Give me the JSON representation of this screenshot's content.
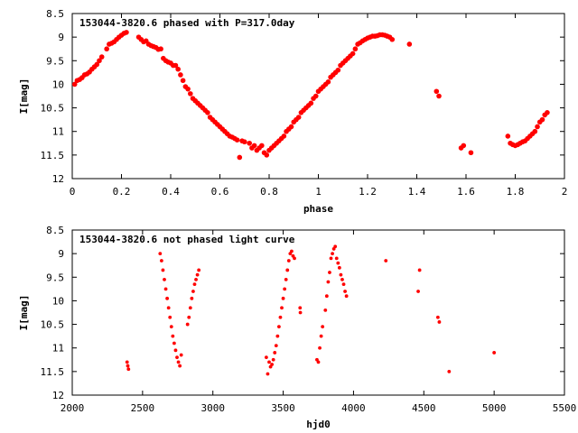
{
  "chart_data": [
    {
      "type": "scatter",
      "title": "153044-3820.6 phased with P=317.0day",
      "xlabel": "phase",
      "ylabel": "I[mag]",
      "xlim": [
        0,
        2
      ],
      "ylim": [
        12,
        8.5
      ],
      "y_inverted": true,
      "xticks": [
        0,
        0.2,
        0.4,
        0.6,
        0.8,
        1,
        1.2,
        1.4,
        1.6,
        1.8,
        2
      ],
      "xtick_labels": [
        "0",
        "0.2",
        "0.4",
        "0.6",
        "0.8",
        "1",
        "1.2",
        "1.4",
        "1.6",
        "1.8",
        "2"
      ],
      "yticks": [
        8.5,
        9,
        9.5,
        10,
        10.5,
        11,
        11.5,
        12
      ],
      "ytick_labels": [
        "8.5",
        "9",
        "9.5",
        "10",
        "10.5",
        "11",
        "11.5",
        "12"
      ],
      "grid": false,
      "marker": "filled-circle",
      "color": "#ff0000",
      "series": [
        {
          "points": [
            [
              0.01,
              10.0
            ],
            [
              0.02,
              9.92
            ],
            [
              0.03,
              9.9
            ],
            [
              0.04,
              9.86
            ],
            [
              0.05,
              9.8
            ],
            [
              0.06,
              9.78
            ],
            [
              0.07,
              9.74
            ],
            [
              0.08,
              9.68
            ],
            [
              0.09,
              9.63
            ],
            [
              0.1,
              9.58
            ],
            [
              0.11,
              9.5
            ],
            [
              0.12,
              9.42
            ],
            [
              0.14,
              9.25
            ],
            [
              0.15,
              9.15
            ],
            [
              0.16,
              9.13
            ],
            [
              0.17,
              9.1
            ],
            [
              0.18,
              9.05
            ],
            [
              0.19,
              9.0
            ],
            [
              0.2,
              8.96
            ],
            [
              0.21,
              8.92
            ],
            [
              0.22,
              8.9
            ],
            [
              0.27,
              9.0
            ],
            [
              0.28,
              9.05
            ],
            [
              0.29,
              9.1
            ],
            [
              0.3,
              9.08
            ],
            [
              0.31,
              9.15
            ],
            [
              0.32,
              9.18
            ],
            [
              0.33,
              9.2
            ],
            [
              0.34,
              9.22
            ],
            [
              0.35,
              9.26
            ],
            [
              0.36,
              9.25
            ],
            [
              0.37,
              9.45
            ],
            [
              0.38,
              9.5
            ],
            [
              0.39,
              9.53
            ],
            [
              0.4,
              9.55
            ],
            [
              0.41,
              9.6
            ],
            [
              0.42,
              9.6
            ],
            [
              0.43,
              9.68
            ],
            [
              0.44,
              9.8
            ],
            [
              0.45,
              9.92
            ],
            [
              0.46,
              10.05
            ],
            [
              0.47,
              10.1
            ],
            [
              0.48,
              10.2
            ],
            [
              0.49,
              10.3
            ],
            [
              0.5,
              10.35
            ],
            [
              0.51,
              10.4
            ],
            [
              0.52,
              10.45
            ],
            [
              0.53,
              10.5
            ],
            [
              0.54,
              10.55
            ],
            [
              0.55,
              10.6
            ],
            [
              0.56,
              10.7
            ],
            [
              0.57,
              10.75
            ],
            [
              0.58,
              10.8
            ],
            [
              0.59,
              10.85
            ],
            [
              0.6,
              10.9
            ],
            [
              0.61,
              10.95
            ],
            [
              0.62,
              11.0
            ],
            [
              0.63,
              11.05
            ],
            [
              0.64,
              11.1
            ],
            [
              0.65,
              11.12
            ],
            [
              0.66,
              11.15
            ],
            [
              0.67,
              11.18
            ],
            [
              0.68,
              11.55
            ],
            [
              0.69,
              11.2
            ],
            [
              0.7,
              11.22
            ],
            [
              0.72,
              11.25
            ],
            [
              0.73,
              11.35
            ],
            [
              0.74,
              11.3
            ],
            [
              0.75,
              11.4
            ],
            [
              0.76,
              11.35
            ],
            [
              0.77,
              11.3
            ],
            [
              0.78,
              11.45
            ],
            [
              0.79,
              11.5
            ],
            [
              0.8,
              11.4
            ],
            [
              0.81,
              11.35
            ],
            [
              0.82,
              11.3
            ],
            [
              0.83,
              11.25
            ],
            [
              0.84,
              11.2
            ],
            [
              0.85,
              11.15
            ],
            [
              0.86,
              11.1
            ],
            [
              0.87,
              11.0
            ],
            [
              0.88,
              10.95
            ],
            [
              0.89,
              10.9
            ],
            [
              0.9,
              10.8
            ],
            [
              0.91,
              10.75
            ],
            [
              0.92,
              10.7
            ],
            [
              0.93,
              10.6
            ],
            [
              0.94,
              10.55
            ],
            [
              0.95,
              10.5
            ],
            [
              0.96,
              10.45
            ],
            [
              0.97,
              10.4
            ],
            [
              0.98,
              10.3
            ],
            [
              0.99,
              10.25
            ],
            [
              1.0,
              10.15
            ],
            [
              1.01,
              10.1
            ],
            [
              1.02,
              10.05
            ],
            [
              1.03,
              10.0
            ],
            [
              1.04,
              9.95
            ],
            [
              1.05,
              9.85
            ],
            [
              1.06,
              9.8
            ],
            [
              1.07,
              9.75
            ],
            [
              1.08,
              9.7
            ],
            [
              1.09,
              9.6
            ],
            [
              1.1,
              9.55
            ],
            [
              1.11,
              9.5
            ],
            [
              1.12,
              9.45
            ],
            [
              1.13,
              9.4
            ],
            [
              1.14,
              9.35
            ],
            [
              1.15,
              9.25
            ],
            [
              1.16,
              9.15
            ],
            [
              1.17,
              9.12
            ],
            [
              1.18,
              9.08
            ],
            [
              1.19,
              9.05
            ],
            [
              1.2,
              9.02
            ],
            [
              1.21,
              9.0
            ],
            [
              1.22,
              8.98
            ],
            [
              1.23,
              8.98
            ],
            [
              1.24,
              8.97
            ],
            [
              1.25,
              8.95
            ],
            [
              1.26,
              8.95
            ],
            [
              1.27,
              8.96
            ],
            [
              1.28,
              8.98
            ],
            [
              1.29,
              9.0
            ],
            [
              1.3,
              9.05
            ],
            [
              1.37,
              9.15
            ],
            [
              1.48,
              10.15
            ],
            [
              1.49,
              10.25
            ],
            [
              1.58,
              11.35
            ],
            [
              1.59,
              11.3
            ],
            [
              1.62,
              11.45
            ],
            [
              1.77,
              11.1
            ],
            [
              1.78,
              11.25
            ],
            [
              1.79,
              11.28
            ],
            [
              1.8,
              11.3
            ],
            [
              1.81,
              11.28
            ],
            [
              1.82,
              11.25
            ],
            [
              1.83,
              11.22
            ],
            [
              1.84,
              11.2
            ],
            [
              1.85,
              11.15
            ],
            [
              1.86,
              11.1
            ],
            [
              1.87,
              11.05
            ],
            [
              1.88,
              11.0
            ],
            [
              1.89,
              10.9
            ],
            [
              1.9,
              10.8
            ],
            [
              1.91,
              10.75
            ],
            [
              1.92,
              10.65
            ],
            [
              1.93,
              10.6
            ]
          ]
        }
      ]
    },
    {
      "type": "scatter",
      "title": "153044-3820.6 not phased light curve",
      "xlabel": "hjd0",
      "ylabel": "I[mag]",
      "xlim": [
        2000,
        5500
      ],
      "ylim": [
        12,
        8.5
      ],
      "y_inverted": true,
      "xticks": [
        2000,
        2500,
        3000,
        3500,
        4000,
        4500,
        5000,
        5500
      ],
      "xtick_labels": [
        "2000",
        "2500",
        "3000",
        "3500",
        "4000",
        "4500",
        "5000",
        "5500"
      ],
      "yticks": [
        8.5,
        9,
        9.5,
        10,
        10.5,
        11,
        11.5,
        12
      ],
      "ytick_labels": [
        "8.5",
        "9",
        "9.5",
        "10",
        "10.5",
        "11",
        "11.5",
        "12"
      ],
      "grid": false,
      "marker": "filled-circle",
      "color": "#ff0000",
      "series": [
        {
          "points": [
            [
              2390,
              11.3
            ],
            [
              2395,
              11.38
            ],
            [
              2400,
              11.45
            ],
            [
              2625,
              9.0
            ],
            [
              2635,
              9.15
            ],
            [
              2645,
              9.35
            ],
            [
              2655,
              9.55
            ],
            [
              2665,
              9.75
            ],
            [
              2675,
              9.95
            ],
            [
              2685,
              10.15
            ],
            [
              2695,
              10.35
            ],
            [
              2705,
              10.55
            ],
            [
              2715,
              10.75
            ],
            [
              2725,
              10.9
            ],
            [
              2735,
              11.05
            ],
            [
              2745,
              11.2
            ],
            [
              2755,
              11.3
            ],
            [
              2765,
              11.38
            ],
            [
              2775,
              11.15
            ],
            [
              2820,
              10.5
            ],
            [
              2830,
              10.35
            ],
            [
              2840,
              10.15
            ],
            [
              2850,
              9.95
            ],
            [
              2860,
              9.8
            ],
            [
              2870,
              9.65
            ],
            [
              2880,
              9.55
            ],
            [
              2890,
              9.45
            ],
            [
              2900,
              9.35
            ],
            [
              3380,
              11.2
            ],
            [
              3390,
              11.55
            ],
            [
              3400,
              11.3
            ],
            [
              3410,
              11.4
            ],
            [
              3420,
              11.35
            ],
            [
              3430,
              11.25
            ],
            [
              3440,
              11.1
            ],
            [
              3450,
              10.95
            ],
            [
              3460,
              10.75
            ],
            [
              3470,
              10.55
            ],
            [
              3480,
              10.35
            ],
            [
              3490,
              10.15
            ],
            [
              3500,
              9.95
            ],
            [
              3510,
              9.75
            ],
            [
              3520,
              9.55
            ],
            [
              3530,
              9.35
            ],
            [
              3540,
              9.15
            ],
            [
              3550,
              9.0
            ],
            [
              3560,
              8.95
            ],
            [
              3570,
              9.05
            ],
            [
              3580,
              9.1
            ],
            [
              3620,
              10.15
            ],
            [
              3622,
              10.25
            ],
            [
              3740,
              11.25
            ],
            [
              3750,
              11.3
            ],
            [
              3760,
              11.0
            ],
            [
              3770,
              10.75
            ],
            [
              3780,
              10.55
            ],
            [
              3800,
              10.2
            ],
            [
              3810,
              9.9
            ],
            [
              3820,
              9.6
            ],
            [
              3830,
              9.4
            ],
            [
              3840,
              9.1
            ],
            [
              3850,
              9.0
            ],
            [
              3860,
              8.9
            ],
            [
              3870,
              8.85
            ],
            [
              3880,
              9.1
            ],
            [
              3890,
              9.2
            ],
            [
              3900,
              9.3
            ],
            [
              3910,
              9.45
            ],
            [
              3920,
              9.55
            ],
            [
              3930,
              9.65
            ],
            [
              3940,
              9.8
            ],
            [
              3950,
              9.9
            ],
            [
              4230,
              9.15
            ],
            [
              4460,
              9.8
            ],
            [
              4470,
              9.35
            ],
            [
              4600,
              10.35
            ],
            [
              4610,
              10.45
            ],
            [
              4680,
              11.5
            ],
            [
              5000,
              11.1
            ]
          ]
        }
      ]
    }
  ]
}
